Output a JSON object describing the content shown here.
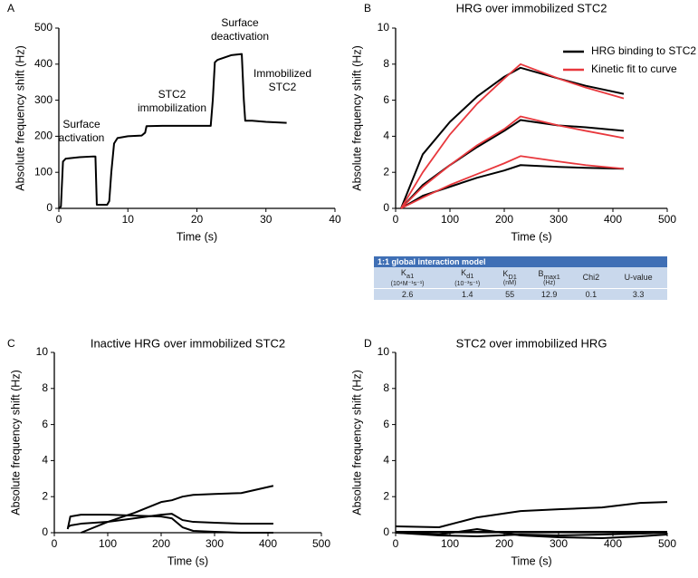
{
  "chart_data": [
    {
      "type": "line",
      "panel": "A",
      "xlabel": "Time (s)",
      "ylabel": "Absolute frequency shift (Hz)",
      "xlim": [
        0,
        40
      ],
      "xticks": [
        0,
        10,
        20,
        30,
        40
      ],
      "ylim": [
        0,
        500
      ],
      "yticks": [
        0,
        100,
        200,
        300,
        400,
        500
      ],
      "x": [
        0,
        0.3,
        0.6,
        1,
        3,
        5,
        5.3,
        5.5,
        7,
        7.3,
        7.6,
        8,
        8.5,
        10,
        12,
        12.5,
        12.7,
        15,
        22,
        22.3,
        22.6,
        23,
        25,
        26.5,
        26.8,
        27,
        28,
        30,
        33
      ],
      "series": [
        {
          "color": "#000000",
          "values": [
            0,
            5,
            130,
            138,
            142,
            144,
            144,
            10,
            10,
            20,
            100,
            180,
            195,
            200,
            202,
            210,
            228,
            229,
            229,
            300,
            405,
            412,
            425,
            428,
            300,
            243,
            243,
            240,
            237
          ]
        }
      ],
      "annotations": [
        [
          "Surface",
          "activation"
        ],
        [
          "STC2",
          "immobilization"
        ],
        [
          "Surface",
          "deactivation"
        ],
        [
          "Immobilized",
          "STC2"
        ]
      ]
    },
    {
      "type": "line",
      "panel": "B",
      "title": "HRG over immobilized STC2",
      "xlabel": "Time (s)",
      "ylabel": "Absolute frequency shift (Hz)",
      "xlim": [
        0,
        500
      ],
      "xticks": [
        0,
        100,
        200,
        300,
        400,
        500
      ],
      "ylim": [
        0,
        10
      ],
      "yticks": [
        0,
        2,
        4,
        6,
        8,
        10
      ],
      "legend": "top-right",
      "x": [
        10,
        50,
        100,
        150,
        200,
        230,
        300,
        350,
        420
      ],
      "series": [
        {
          "name": "HRG binding to STC2",
          "color": "#000000",
          "values": [
            [
              0,
              3.0,
              4.8,
              6.2,
              7.3,
              7.8,
              7.2,
              6.8,
              6.35
            ],
            [
              0,
              1.3,
              2.4,
              3.4,
              4.3,
              4.9,
              4.6,
              4.5,
              4.3
            ],
            [
              0,
              0.7,
              1.2,
              1.7,
              2.1,
              2.4,
              2.3,
              2.25,
              2.2
            ]
          ]
        },
        {
          "name": "Kinetic fit to curve",
          "color": "#e8383d",
          "values": [
            [
              0,
              2.0,
              4.1,
              5.8,
              7.2,
              8.0,
              7.2,
              6.7,
              6.1
            ],
            [
              0,
              1.2,
              2.4,
              3.5,
              4.4,
              5.1,
              4.6,
              4.3,
              3.9
            ],
            [
              0,
              0.6,
              1.3,
              1.9,
              2.5,
              2.9,
              2.6,
              2.4,
              2.2
            ]
          ]
        }
      ]
    },
    {
      "type": "line",
      "panel": "C",
      "title": "Inactive HRG over immobilized STC2",
      "xlabel": "Time (s)",
      "ylabel": "Absolute frequency shift (Hz)",
      "xlim": [
        0,
        500
      ],
      "xticks": [
        0,
        100,
        200,
        300,
        400,
        500
      ],
      "ylim": [
        0,
        10
      ],
      "yticks": [
        0,
        2,
        4,
        6,
        8,
        10
      ],
      "x": [
        25,
        30,
        50,
        100,
        150,
        200,
        220,
        240,
        260,
        300,
        350,
        410
      ],
      "series": [
        {
          "color": "#000000",
          "values": [
            [
              null,
              null,
              0,
              0.6,
              1.1,
              1.7,
              1.8,
              2.0,
              2.1,
              2.15,
              2.2,
              2.6
            ],
            [
              0.2,
              0.9,
              1.0,
              1.0,
              0.95,
              0.9,
              0.8,
              0.3,
              0.1,
              0.05,
              0,
              0
            ],
            [
              0.3,
              0.4,
              0.5,
              0.6,
              0.8,
              1.0,
              1.05,
              0.7,
              0.6,
              0.55,
              0.5,
              0.5
            ]
          ]
        }
      ]
    },
    {
      "type": "line",
      "panel": "D",
      "title": "STC2 over immobilized HRG",
      "xlabel": "Time (s)",
      "ylabel": "Absolute frequency shift (Hz)",
      "xlim": [
        0,
        500
      ],
      "xticks": [
        0,
        100,
        200,
        300,
        400,
        500
      ],
      "ylim": [
        0,
        10
      ],
      "yticks": [
        0,
        2,
        4,
        6,
        8,
        10
      ],
      "x": [
        0,
        80,
        150,
        230,
        300,
        380,
        450,
        500
      ],
      "series": [
        {
          "color": "#000000",
          "values": [
            [
              0.35,
              0.3,
              0.85,
              1.2,
              1.3,
              1.4,
              1.65,
              1.7
            ],
            [
              0.05,
              0.05,
              0.05,
              0.05,
              0.05,
              0.05,
              0.05,
              0.05
            ],
            [
              0,
              -0.1,
              0.2,
              -0.15,
              -0.25,
              -0.3,
              -0.2,
              -0.1
            ],
            [
              0,
              -0.15,
              -0.2,
              -0.1,
              -0.15,
              -0.1,
              -0.05,
              0
            ]
          ]
        }
      ]
    }
  ],
  "table": {
    "title": "1:1 global interaction model",
    "columns": [
      {
        "main": "K",
        "sub": "a1",
        "unit": "(10⁴M⁻¹s⁻¹)"
      },
      {
        "main": "K",
        "sub": "d1",
        "unit": "(10⁻³s⁻¹)"
      },
      {
        "main": "K",
        "sub": "D1",
        "unit": "(nM)"
      },
      {
        "main": "B",
        "sub": "max1",
        "unit": "(Hz)"
      },
      {
        "main": "Chi2"
      },
      {
        "main": "U-value"
      }
    ],
    "row": [
      2.6,
      1.4,
      55,
      12.9,
      0.1,
      3.3
    ]
  }
}
